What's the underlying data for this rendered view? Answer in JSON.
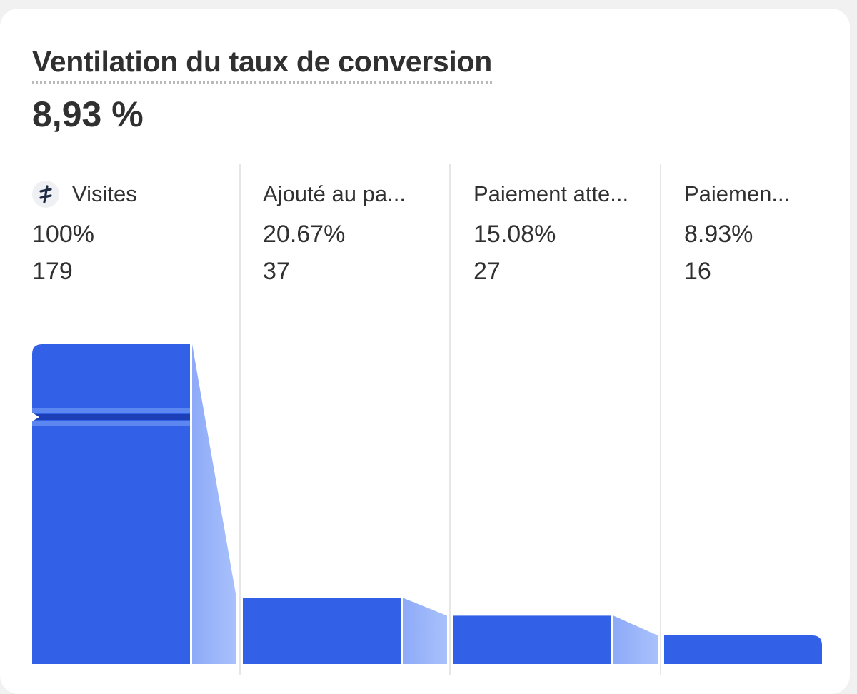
{
  "card": {
    "title": "Ventilation du taux de conversion",
    "value": "8,93 %"
  },
  "chart_data": {
    "type": "bar",
    "title": "Ventilation du taux de conversion",
    "categories": [
      "Visites",
      "Ajouté au pa...",
      "Paiement atte...",
      "Paiemen..."
    ],
    "series": [
      {
        "values": [
          179,
          37,
          27,
          16
        ]
      }
    ],
    "percentages": [
      "100%",
      "20.67%",
      "15.08%",
      "8.93%"
    ],
    "counts": [
      "179",
      "37",
      "27",
      "16"
    ],
    "bar_color": "#3261e8",
    "connector_color": "#a9c1fb",
    "grid": false
  }
}
